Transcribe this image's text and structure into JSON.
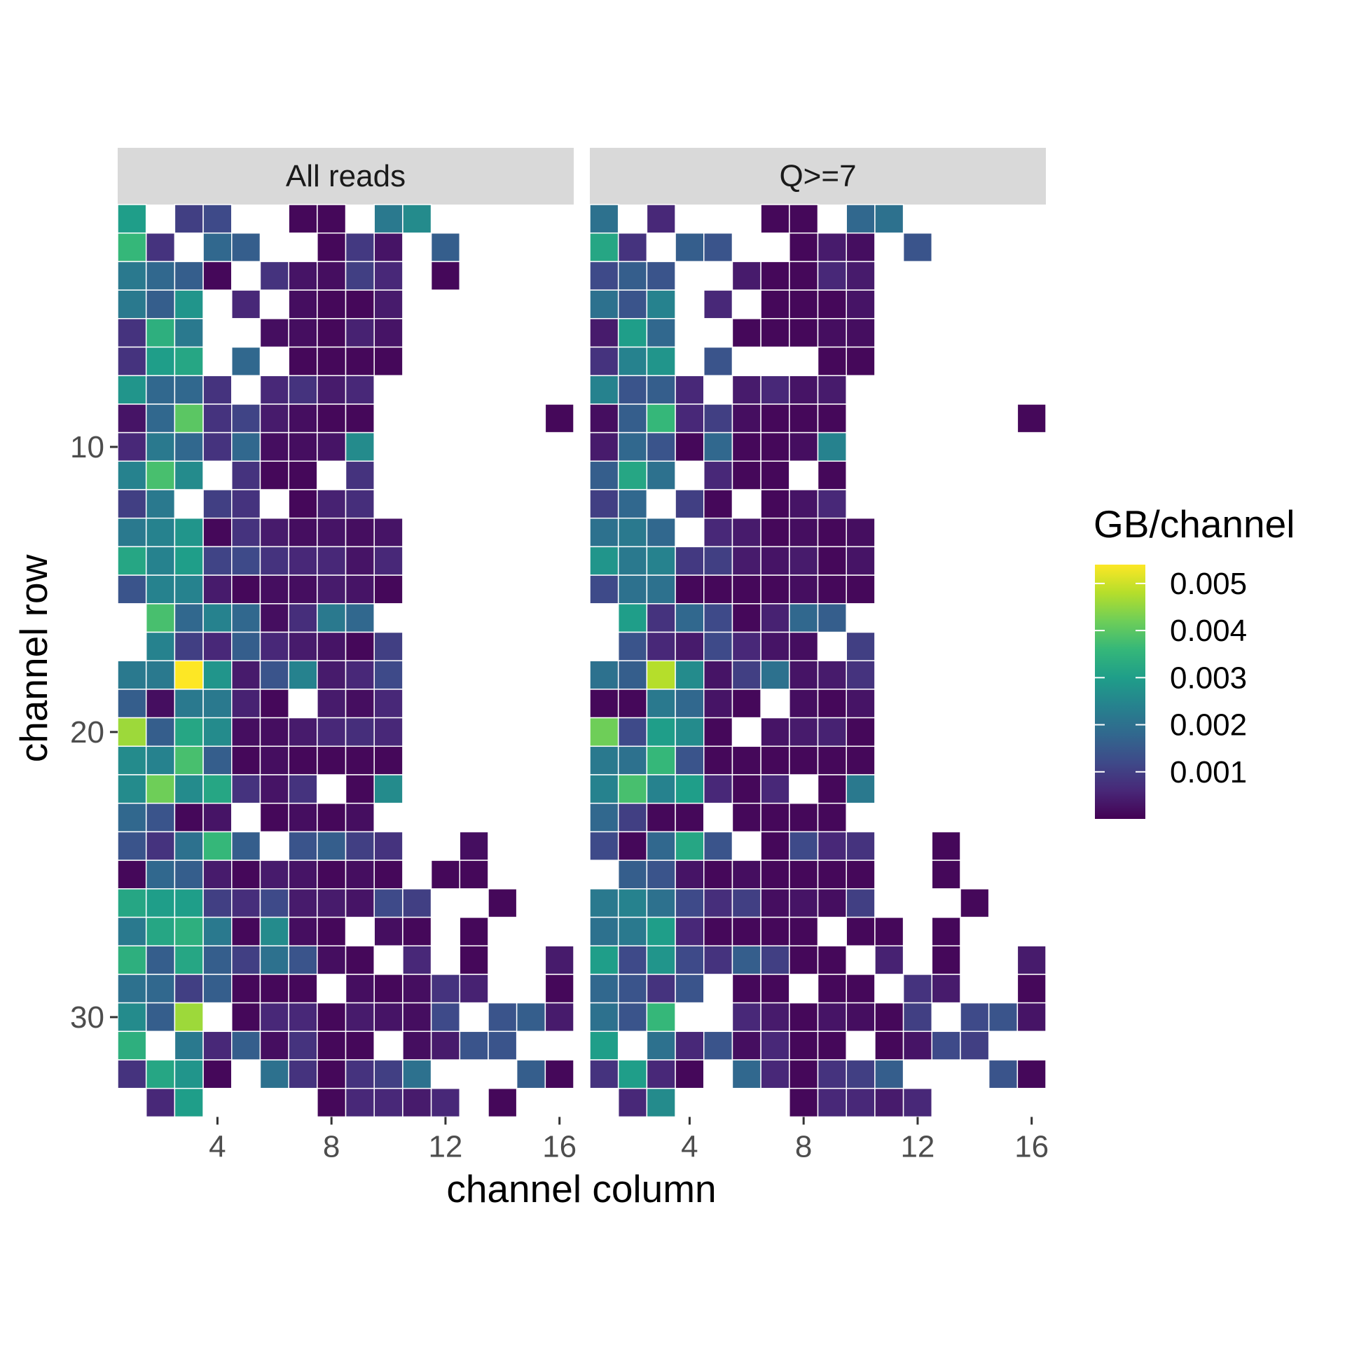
{
  "chart_data": {
    "type": "heatmap",
    "xlabel": "channel column",
    "ylabel": "channel row",
    "x_ticks": [
      4,
      8,
      12,
      16
    ],
    "y_ticks": [
      10,
      20,
      30
    ],
    "xlim": [
      0.5,
      16.5
    ],
    "ylim": [
      1.5,
      32.5
    ],
    "y_reversed": true,
    "legend": {
      "title": "GB/channel",
      "position": "right",
      "breaks": [
        "0.005",
        "0.004",
        "0.003",
        "0.002",
        "0.001"
      ],
      "break_values": [
        0.005,
        0.004,
        0.003,
        0.002,
        0.001
      ],
      "range": [
        0.0,
        0.0054
      ],
      "palette": "viridis",
      "colors": [
        "#440154",
        "#482878",
        "#3e4a89",
        "#31688e",
        "#26828e",
        "#1f9e89",
        "#35b779",
        "#6ece58",
        "#b5de2b",
        "#fde725"
      ]
    },
    "facets": [
      {
        "label": "All reads",
        "grid_rows_from": 2,
        "grid": [
          [
            30,
            0,
            10,
            12,
            0,
            0,
            1,
            1,
            0,
            22,
            26,
            0,
            0,
            0,
            0,
            0
          ],
          [
            36,
            8,
            0,
            18,
            16,
            0,
            0,
            1,
            9,
            3,
            0,
            16,
            0,
            0,
            0,
            0
          ],
          [
            22,
            18,
            16,
            1,
            0,
            8,
            3,
            2,
            10,
            6,
            0,
            1,
            0,
            0,
            0,
            0
          ],
          [
            22,
            16,
            28,
            0,
            6,
            0,
            2,
            1,
            1,
            4,
            0,
            0,
            0,
            0,
            0,
            0
          ],
          [
            8,
            34,
            22,
            0,
            0,
            2,
            2,
            1,
            5,
            3,
            0,
            0,
            0,
            0,
            0,
            0
          ],
          [
            8,
            30,
            32,
            0,
            18,
            0,
            1,
            1,
            1,
            1,
            0,
            0,
            0,
            0,
            0,
            0
          ],
          [
            28,
            18,
            18,
            8,
            0,
            6,
            8,
            4,
            6,
            0,
            0,
            0,
            0,
            0,
            0,
            0
          ],
          [
            3,
            18,
            40,
            8,
            11,
            4,
            2,
            1,
            1,
            0,
            0,
            0,
            0,
            0,
            0,
            1
          ],
          [
            6,
            22,
            18,
            8,
            18,
            2,
            2,
            3,
            26,
            0,
            0,
            0,
            0,
            0,
            0,
            0
          ],
          [
            24,
            38,
            26,
            0,
            8,
            1,
            1,
            0,
            8,
            0,
            0,
            0,
            0,
            0,
            0,
            0
          ],
          [
            10,
            22,
            0,
            10,
            8,
            0,
            1,
            5,
            7,
            0,
            0,
            0,
            0,
            0,
            0,
            0
          ],
          [
            22,
            24,
            28,
            1,
            8,
            4,
            2,
            3,
            2,
            3,
            0,
            0,
            0,
            0,
            0,
            0
          ],
          [
            32,
            24,
            30,
            11,
            12,
            8,
            6,
            6,
            3,
            6,
            0,
            0,
            0,
            0,
            0,
            0
          ],
          [
            14,
            24,
            24,
            4,
            1,
            2,
            2,
            4,
            3,
            1,
            0,
            0,
            0,
            0,
            0,
            0
          ],
          [
            0,
            38,
            18,
            24,
            18,
            2,
            7,
            22,
            18,
            0,
            0,
            0,
            0,
            0,
            0,
            0
          ],
          [
            0,
            24,
            10,
            6,
            16,
            6,
            4,
            3,
            1,
            10,
            0,
            0,
            0,
            0,
            0,
            0
          ],
          [
            22,
            22,
            54,
            28,
            4,
            14,
            24,
            4,
            6,
            12,
            0,
            0,
            0,
            0,
            0,
            0
          ],
          [
            16,
            2,
            22,
            22,
            5,
            1,
            0,
            4,
            2,
            6,
            0,
            0,
            0,
            0,
            0,
            0
          ],
          [
            46,
            16,
            32,
            26,
            2,
            2,
            4,
            6,
            7,
            6,
            0,
            0,
            0,
            0,
            0,
            0
          ],
          [
            26,
            24,
            38,
            16,
            1,
            2,
            1,
            1,
            1,
            1,
            0,
            0,
            0,
            0,
            0,
            0
          ],
          [
            26,
            42,
            26,
            32,
            8,
            3,
            8,
            0,
            1,
            26,
            0,
            0,
            0,
            0,
            0,
            0
          ],
          [
            18,
            14,
            1,
            3,
            0,
            1,
            2,
            1,
            2,
            0,
            0,
            0,
            0,
            0,
            0,
            0
          ],
          [
            14,
            8,
            20,
            36,
            16,
            0,
            14,
            16,
            10,
            8,
            0,
            0,
            2,
            0,
            0,
            0
          ],
          [
            1,
            18,
            16,
            4,
            1,
            4,
            3,
            1,
            2,
            1,
            0,
            1,
            1,
            0,
            0,
            0
          ],
          [
            32,
            30,
            30,
            10,
            7,
            12,
            4,
            4,
            3,
            12,
            10,
            0,
            0,
            1,
            0,
            0
          ],
          [
            22,
            32,
            34,
            22,
            1,
            26,
            2,
            1,
            0,
            2,
            1,
            0,
            1,
            0,
            0,
            0
          ],
          [
            34,
            16,
            32,
            16,
            10,
            20,
            14,
            2,
            1,
            0,
            6,
            0,
            1,
            0,
            0,
            4
          ],
          [
            20,
            18,
            10,
            16,
            1,
            1,
            1,
            0,
            2,
            1,
            2,
            8,
            5,
            0,
            0,
            1
          ],
          [
            26,
            16,
            46,
            0,
            1,
            6,
            6,
            1,
            4,
            3,
            2,
            12,
            0,
            14,
            16,
            4
          ],
          [
            34,
            0,
            22,
            6,
            16,
            2,
            8,
            1,
            1,
            0,
            2,
            4,
            14,
            14,
            0,
            0
          ],
          [
            8,
            32,
            28,
            1,
            0,
            20,
            8,
            1,
            8,
            10,
            20,
            0,
            0,
            0,
            16,
            1
          ],
          [
            0,
            6,
            30,
            0,
            0,
            0,
            0,
            1,
            6,
            6,
            4,
            6,
            0,
            1,
            0,
            0
          ]
        ]
      },
      {
        "label": "Q>=7",
        "grid_rows_from": 2,
        "grid": [
          [
            20,
            0,
            6,
            0,
            0,
            0,
            1,
            1,
            0,
            18,
            20,
            0,
            0,
            0,
            0,
            0
          ],
          [
            32,
            8,
            0,
            16,
            14,
            0,
            0,
            1,
            4,
            2,
            0,
            14,
            0,
            0,
            0,
            0
          ],
          [
            12,
            16,
            14,
            0,
            0,
            4,
            1,
            1,
            6,
            4,
            0,
            0,
            0,
            0,
            0,
            0
          ],
          [
            20,
            14,
            24,
            0,
            6,
            0,
            1,
            1,
            1,
            3,
            0,
            0,
            0,
            0,
            0,
            0
          ],
          [
            4,
            30,
            18,
            0,
            0,
            1,
            1,
            1,
            2,
            2,
            0,
            0,
            0,
            0,
            0,
            0
          ],
          [
            8,
            24,
            28,
            0,
            14,
            0,
            0,
            0,
            1,
            1,
            0,
            0,
            0,
            0,
            0,
            0
          ],
          [
            24,
            14,
            16,
            6,
            0,
            4,
            6,
            3,
            4,
            0,
            0,
            0,
            0,
            0,
            0,
            0
          ],
          [
            2,
            16,
            36,
            6,
            10,
            2,
            1,
            1,
            1,
            0,
            0,
            0,
            0,
            0,
            0,
            1
          ],
          [
            4,
            18,
            14,
            1,
            18,
            1,
            1,
            2,
            24,
            0,
            0,
            0,
            0,
            0,
            0,
            0
          ],
          [
            16,
            32,
            20,
            0,
            6,
            1,
            1,
            0,
            1,
            0,
            0,
            0,
            0,
            0,
            0,
            0
          ],
          [
            10,
            18,
            0,
            10,
            1,
            0,
            1,
            3,
            6,
            0,
            0,
            0,
            0,
            0,
            0,
            0
          ],
          [
            20,
            22,
            18,
            0,
            6,
            4,
            1,
            2,
            1,
            2,
            0,
            0,
            0,
            0,
            0,
            0
          ],
          [
            28,
            22,
            24,
            9,
            10,
            4,
            3,
            4,
            1,
            3,
            0,
            0,
            0,
            0,
            0,
            0
          ],
          [
            12,
            20,
            20,
            1,
            1,
            1,
            1,
            2,
            1,
            1,
            0,
            0,
            0,
            0,
            0,
            0
          ],
          [
            0,
            30,
            8,
            18,
            12,
            1,
            5,
            18,
            16,
            0,
            0,
            0,
            0,
            0,
            0,
            0
          ],
          [
            0,
            14,
            6,
            4,
            12,
            6,
            3,
            2,
            0,
            10,
            0,
            0,
            0,
            0,
            0,
            0
          ],
          [
            20,
            16,
            48,
            26,
            3,
            10,
            20,
            3,
            4,
            8,
            0,
            0,
            0,
            0,
            0,
            0
          ],
          [
            1,
            1,
            22,
            18,
            3,
            1,
            0,
            2,
            1,
            3,
            0,
            0,
            0,
            0,
            0,
            0
          ],
          [
            42,
            12,
            30,
            26,
            1,
            0,
            3,
            4,
            5,
            1,
            0,
            0,
            0,
            0,
            0,
            0
          ],
          [
            22,
            20,
            36,
            14,
            1,
            1,
            1,
            1,
            1,
            1,
            0,
            0,
            0,
            0,
            0,
            0
          ],
          [
            24,
            38,
            24,
            30,
            6,
            1,
            6,
            0,
            1,
            22,
            0,
            0,
            0,
            0,
            0,
            0
          ],
          [
            18,
            10,
            1,
            1,
            0,
            1,
            1,
            1,
            1,
            0,
            0,
            0,
            0,
            0,
            0,
            0
          ],
          [
            12,
            1,
            18,
            32,
            14,
            0,
            1,
            12,
            6,
            8,
            0,
            0,
            1,
            0,
            0,
            0
          ],
          [
            0,
            16,
            14,
            3,
            1,
            2,
            1,
            1,
            1,
            1,
            0,
            0,
            1,
            0,
            0,
            0
          ],
          [
            22,
            24,
            20,
            12,
            7,
            10,
            2,
            3,
            2,
            10,
            0,
            0,
            0,
            1,
            0,
            0
          ],
          [
            20,
            22,
            30,
            6,
            1,
            1,
            1,
            1,
            0,
            1,
            1,
            0,
            1,
            0,
            0,
            0
          ],
          [
            30,
            12,
            28,
            12,
            8,
            16,
            10,
            1,
            1,
            0,
            5,
            0,
            1,
            0,
            0,
            4
          ],
          [
            18,
            14,
            8,
            14,
            0,
            1,
            1,
            0,
            1,
            1,
            0,
            8,
            4,
            0,
            0,
            1
          ],
          [
            20,
            14,
            36,
            0,
            0,
            6,
            4,
            1,
            3,
            2,
            1,
            10,
            0,
            12,
            14,
            3
          ],
          [
            30,
            0,
            20,
            6,
            14,
            2,
            6,
            1,
            1,
            0,
            1,
            3,
            12,
            10,
            0,
            0
          ],
          [
            8,
            30,
            6,
            1,
            0,
            18,
            6,
            1,
            8,
            10,
            16,
            0,
            0,
            0,
            14,
            1
          ],
          [
            0,
            6,
            26,
            0,
            0,
            0,
            0,
            1,
            6,
            6,
            4,
            6,
            0,
            0,
            0,
            0
          ]
        ]
      }
    ]
  }
}
